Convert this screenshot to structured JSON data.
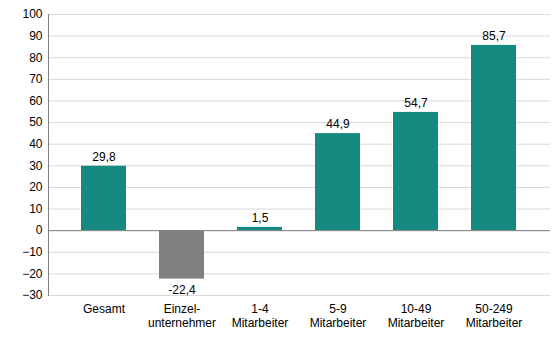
{
  "chart_data": {
    "type": "bar",
    "categories": [
      "Gesamt",
      "Einzel-\nunternehmer",
      "1-4\nMitarbeiter",
      "5-9\nMitarbeiter",
      "10-49\nMitarbeiter",
      "50-249\nMitarbeiter"
    ],
    "values": [
      29.8,
      -22.4,
      1.5,
      44.9,
      54.7,
      85.7
    ],
    "value_labels": [
      "29,8",
      "-22,4",
      "1,5",
      "44,9",
      "54,7",
      "85,7"
    ],
    "colors": [
      "#158a80",
      "#808080",
      "#158a80",
      "#158a80",
      "#158a80",
      "#158a80"
    ],
    "ylim": [
      -30,
      100
    ],
    "yticks": [
      -30,
      -20,
      -10,
      0,
      10,
      20,
      30,
      40,
      50,
      60,
      70,
      80,
      90,
      100
    ],
    "grid": true,
    "data_labels": true
  }
}
